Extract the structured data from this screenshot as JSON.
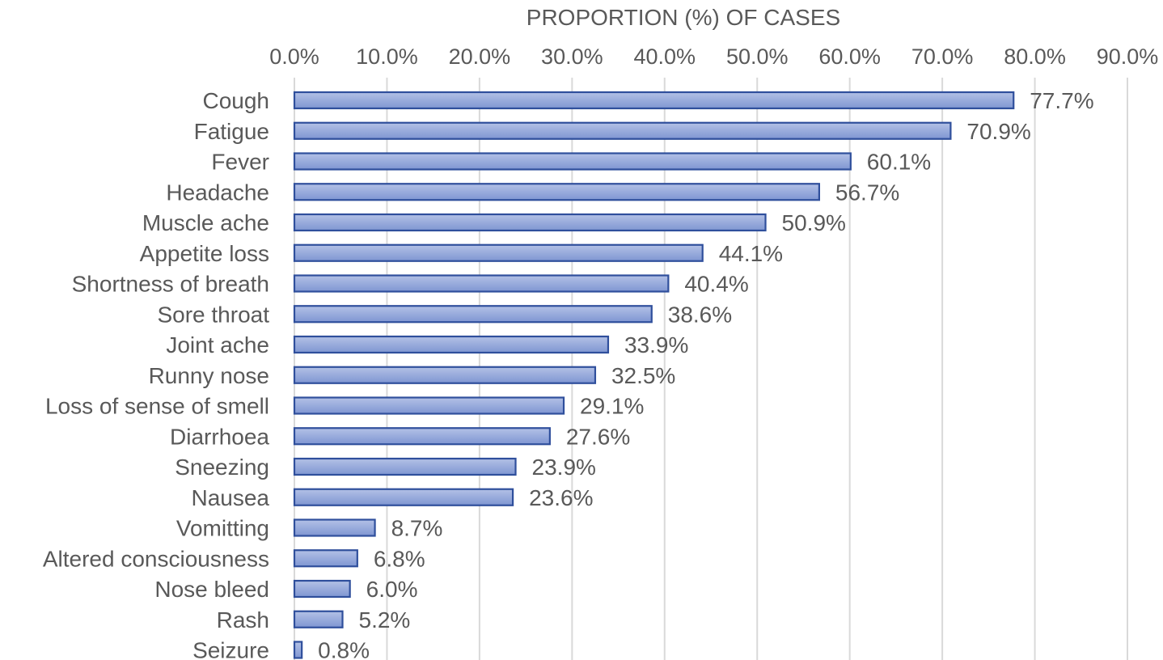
{
  "chart_data": {
    "type": "bar",
    "orientation": "horizontal",
    "title": "",
    "xlabel": "PROPORTION (%) OF CASES",
    "ylabel": "",
    "xlim": [
      0,
      90
    ],
    "x_tick_values": [
      0,
      10,
      20,
      30,
      40,
      50,
      60,
      70,
      80,
      90
    ],
    "x_tick_labels": [
      "0.0%",
      "10.0%",
      "20.0%",
      "30.0%",
      "40.0%",
      "50.0%",
      "60.0%",
      "70.0%",
      "80.0%",
      "90.0%"
    ],
    "x_axis_position": "top",
    "grid": true,
    "legend": "none",
    "categories": [
      "Cough",
      "Fatigue",
      "Fever",
      "Headache",
      "Muscle ache",
      "Appetite loss",
      "Shortness of breath",
      "Sore throat",
      "Joint ache",
      "Runny nose",
      "Loss of sense of smell",
      "Diarrhoea",
      "Sneezing",
      "Nausea",
      "Vomitting",
      "Altered consciousness",
      "Nose bleed",
      "Rash",
      "Seizure"
    ],
    "values": [
      77.7,
      70.9,
      60.1,
      56.7,
      50.9,
      44.1,
      40.4,
      38.6,
      33.9,
      32.5,
      29.1,
      27.6,
      23.9,
      23.6,
      8.7,
      6.8,
      6.0,
      5.2,
      0.8
    ],
    "data_labels": [
      "77.7%",
      "70.9%",
      "60.1%",
      "56.7%",
      "50.9%",
      "44.1%",
      "40.4%",
      "38.6%",
      "33.9%",
      "32.5%",
      "29.1%",
      "27.6%",
      "23.9%",
      "23.6%",
      "8.7%",
      "6.8%",
      "6.0%",
      "5.2%",
      "0.8%"
    ],
    "colors": {
      "bar_fill_top": "#b3c1e6",
      "bar_fill_bottom": "#7f96d2",
      "bar_stroke": "#2f4f9c",
      "gridline": "#d9d9d9",
      "text": "#595959"
    }
  }
}
